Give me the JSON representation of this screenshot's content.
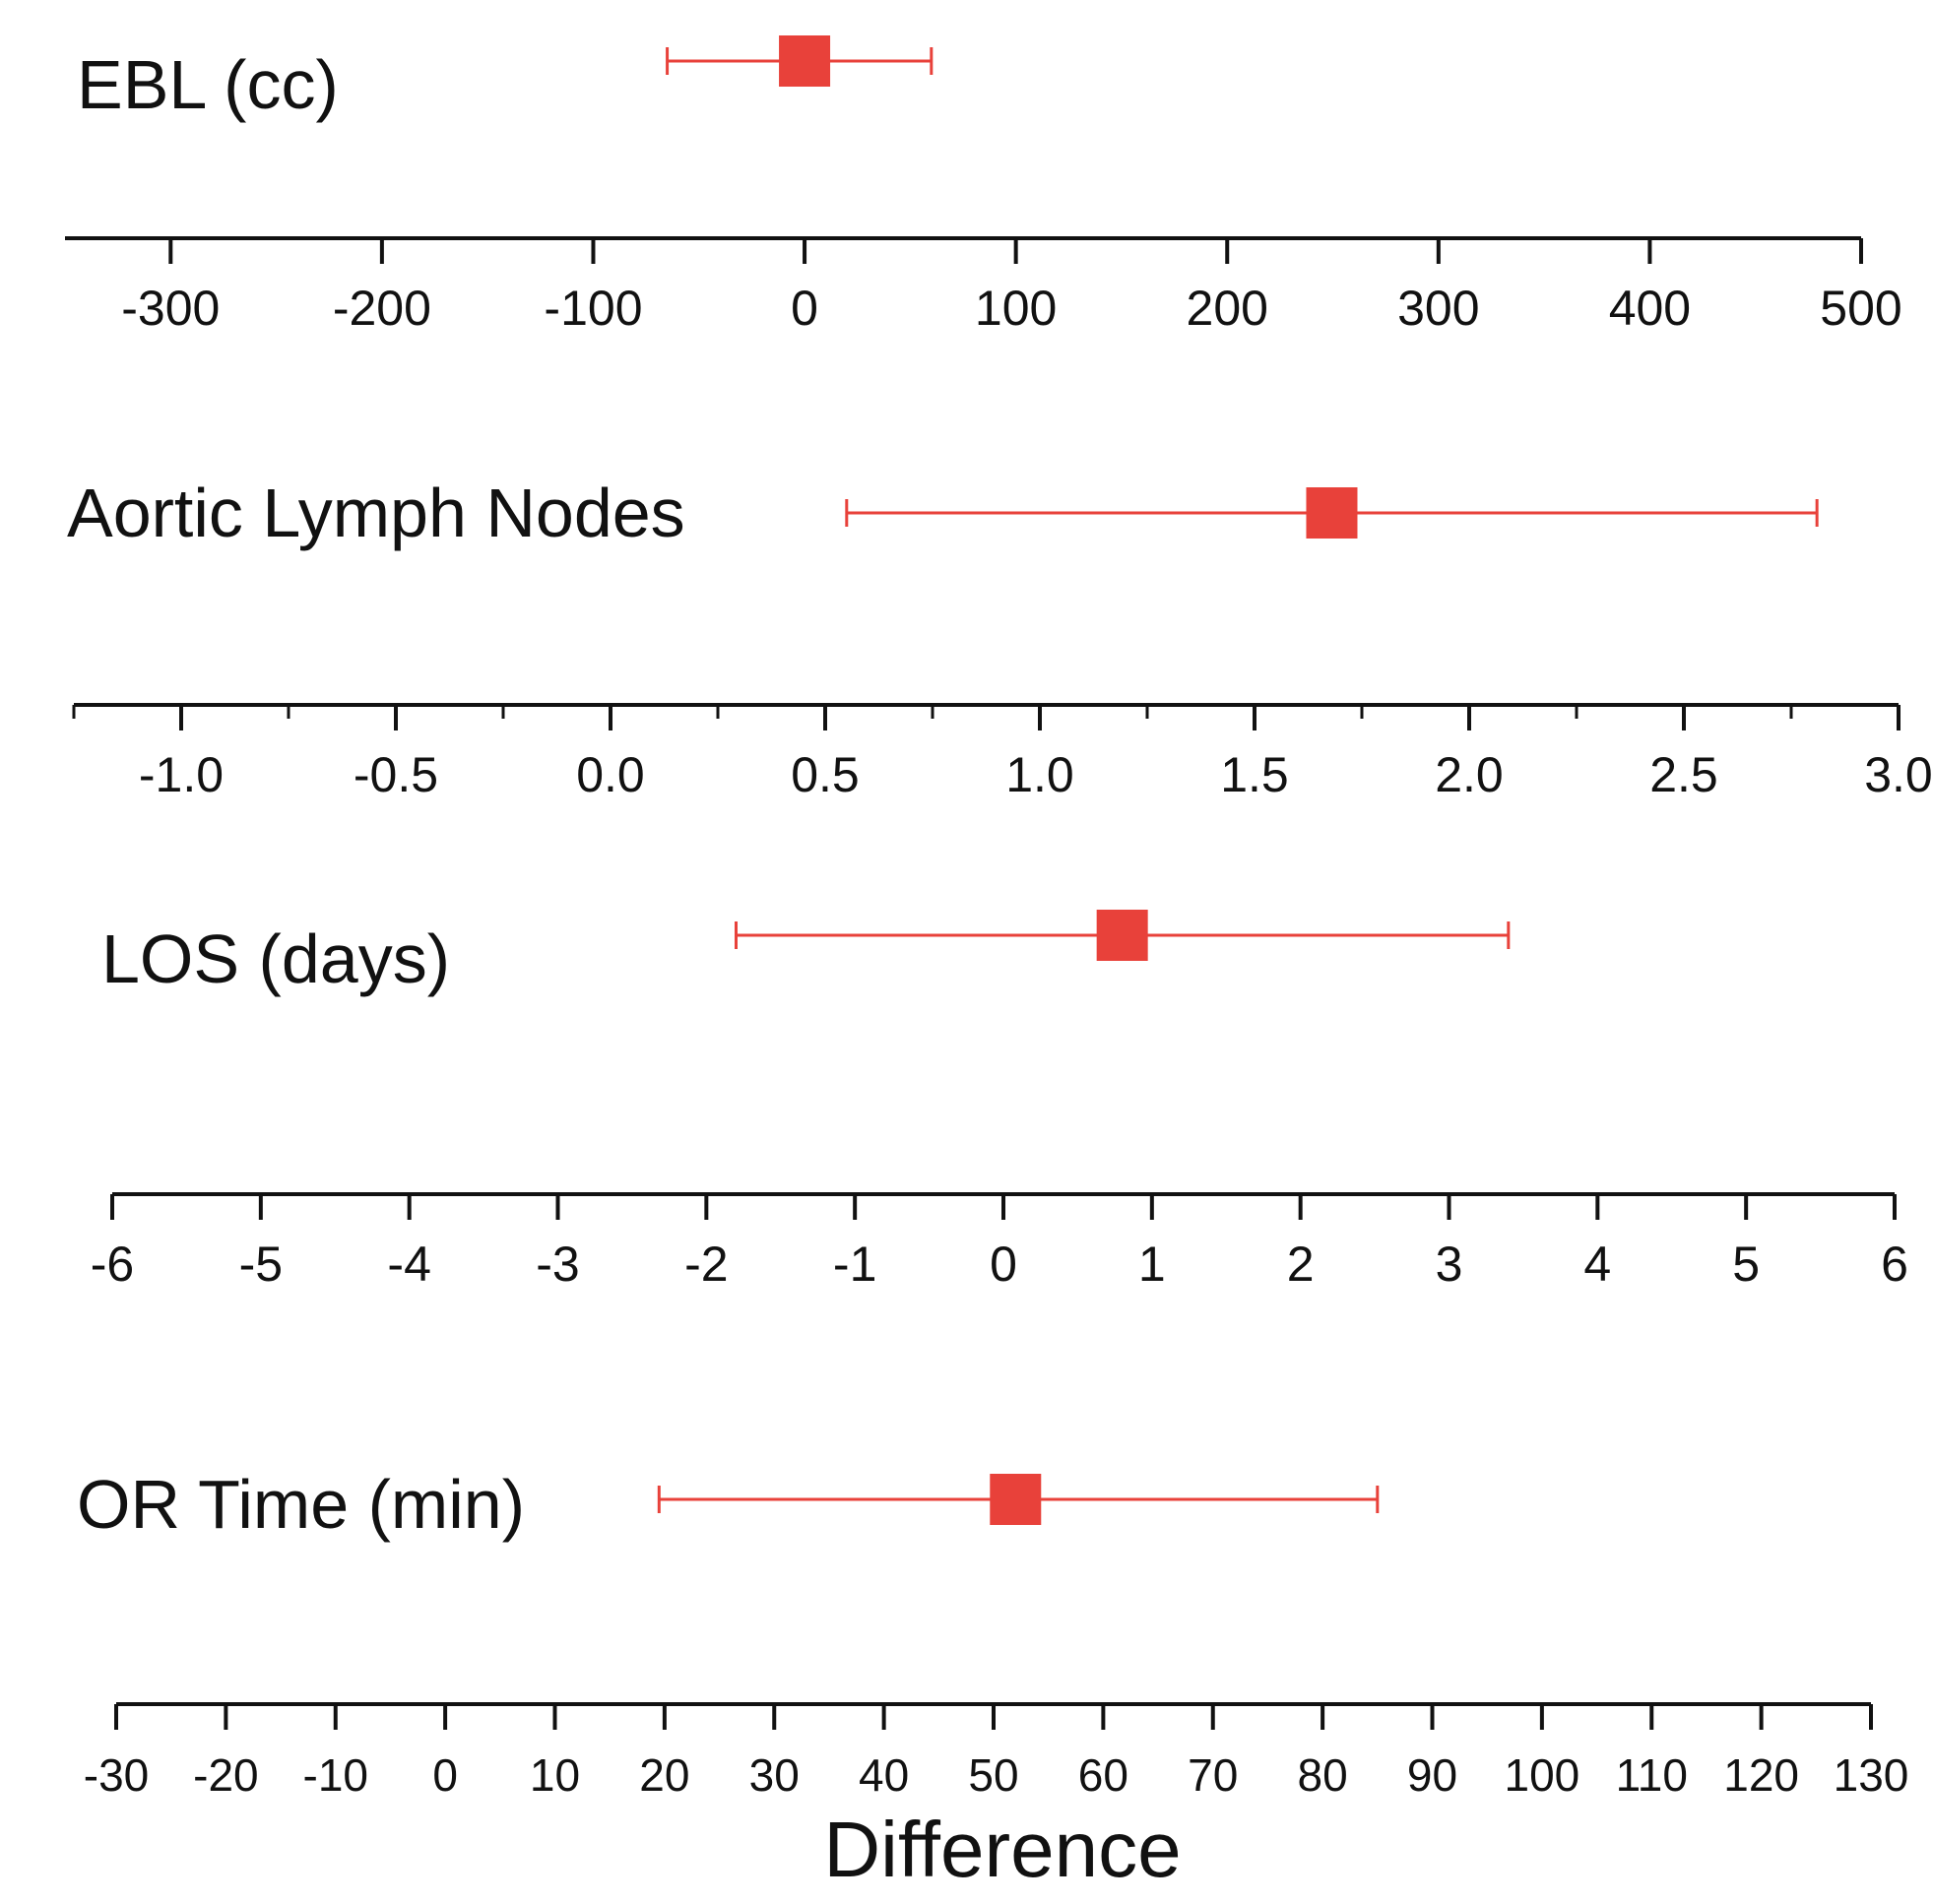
{
  "colors": {
    "marker": "#e8413a",
    "axis": "#111111",
    "text": "#111111"
  },
  "chart_data": [
    {
      "type": "scatter",
      "row_label": "EBL (cc)",
      "point": 0,
      "ci": [
        -65,
        60
      ],
      "xlim": [
        -350,
        500
      ],
      "major_ticks": [
        -300,
        -200,
        -100,
        0,
        100,
        200,
        300,
        400,
        500
      ],
      "tick_labels": [
        "-300",
        "-200",
        "-100",
        "0",
        "100",
        "200",
        "300",
        "400",
        "500"
      ],
      "minor_ticks": []
    },
    {
      "type": "scatter",
      "row_label": "Aortic Lymph Nodes",
      "point": 1.68,
      "ci": [
        0.55,
        2.81
      ],
      "xlim": [
        -1.25,
        3.0
      ],
      "major_ticks": [
        -1.0,
        -0.5,
        0.0,
        0.5,
        1.0,
        1.5,
        2.0,
        2.5,
        3.0
      ],
      "tick_labels": [
        "-1.0",
        "-0.5",
        "0.0",
        "0.5",
        "1.0",
        "1.5",
        "2.0",
        "2.5",
        "3.0"
      ],
      "minor_ticks": [
        -1.25,
        -0.75,
        -0.25,
        0.25,
        0.75,
        1.25,
        1.75,
        2.25,
        2.75
      ]
    },
    {
      "type": "scatter",
      "row_label": "LOS (days)",
      "point": 0.8,
      "ci": [
        -1.8,
        3.4
      ],
      "xlim": [
        -6,
        6
      ],
      "major_ticks": [
        -6,
        -5,
        -4,
        -3,
        -2,
        -1,
        0,
        1,
        2,
        3,
        4,
        5,
        6
      ],
      "tick_labels": [
        "-6",
        "-5",
        "-4",
        "-3",
        "-2",
        "-1",
        "0",
        "1",
        "2",
        "3",
        "4",
        "5",
        "6"
      ],
      "minor_ticks": []
    },
    {
      "type": "scatter",
      "row_label": "OR Time (min)",
      "point": 52,
      "ci": [
        19.5,
        85
      ],
      "xlim": [
        -30,
        130
      ],
      "major_ticks": [
        -30,
        -20,
        -10,
        0,
        10,
        20,
        30,
        40,
        50,
        60,
        70,
        80,
        90,
        100,
        110,
        120,
        130
      ],
      "tick_labels": [
        "-30",
        "-20",
        "-10",
        "0",
        "10",
        "20",
        "30",
        "40",
        "50",
        "60",
        "70",
        "80",
        "90",
        "100",
        "110",
        "120",
        "130"
      ],
      "minor_ticks": []
    }
  ],
  "xlabel": "Difference"
}
